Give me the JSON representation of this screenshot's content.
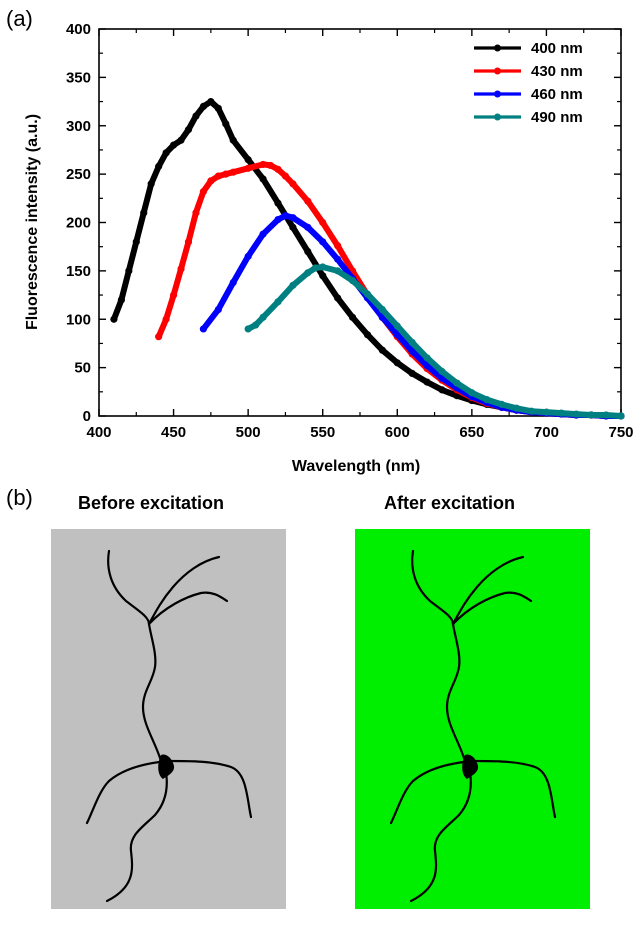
{
  "panel_a_label": "(a)",
  "panel_b_label": "(b)",
  "chart_data": {
    "type": "line",
    "xlabel": "Wavelength (nm)",
    "ylabel": "Fluorescence intensity (a.u.)",
    "xlim": [
      400,
      750
    ],
    "ylim": [
      0,
      400
    ],
    "xticks": [
      400,
      450,
      500,
      550,
      600,
      650,
      700,
      750
    ],
    "yticks": [
      0,
      50,
      100,
      150,
      200,
      250,
      300,
      350,
      400
    ],
    "grid": false,
    "legend_position": "top-right",
    "series": [
      {
        "name": "400 nm",
        "color": "#000000",
        "x": [
          410,
          415,
          420,
          425,
          430,
          435,
          440,
          445,
          450,
          455,
          460,
          465,
          470,
          475,
          480,
          485,
          490,
          500,
          510,
          520,
          530,
          540,
          550,
          560,
          570,
          580,
          590,
          600,
          610,
          620,
          630,
          640,
          650,
          660,
          670,
          680,
          690,
          700,
          710,
          720,
          730,
          740,
          750
        ],
        "y": [
          100,
          120,
          150,
          180,
          210,
          240,
          258,
          272,
          280,
          285,
          296,
          310,
          320,
          325,
          318,
          302,
          285,
          265,
          245,
          220,
          195,
          170,
          145,
          122,
          102,
          84,
          68,
          55,
          44,
          35,
          27,
          21,
          16,
          12,
          9,
          6,
          4,
          3,
          2,
          1,
          1,
          0,
          0
        ]
      },
      {
        "name": "430 nm",
        "color": "#ff0000",
        "x": [
          440,
          445,
          450,
          455,
          460,
          465,
          470,
          475,
          480,
          485,
          490,
          500,
          510,
          515,
          520,
          525,
          530,
          540,
          550,
          560,
          570,
          580,
          590,
          600,
          610,
          620,
          630,
          640,
          650,
          660,
          670,
          680,
          690,
          700,
          710,
          720,
          730,
          740,
          750
        ],
        "y": [
          82,
          100,
          125,
          152,
          180,
          210,
          232,
          243,
          248,
          250,
          252,
          256,
          260,
          259,
          255,
          248,
          240,
          222,
          200,
          176,
          150,
          125,
          102,
          82,
          64,
          49,
          37,
          27,
          19,
          13,
          9,
          6,
          4,
          3,
          2,
          1,
          1,
          0,
          0
        ]
      },
      {
        "name": "460 nm",
        "color": "#0000ff",
        "x": [
          470,
          480,
          490,
          500,
          510,
          520,
          525,
          530,
          540,
          550,
          560,
          570,
          580,
          590,
          600,
          610,
          620,
          630,
          640,
          650,
          660,
          670,
          680,
          690,
          700,
          710,
          720,
          730,
          740,
          750
        ],
        "y": [
          90,
          110,
          138,
          165,
          188,
          203,
          207,
          205,
          195,
          180,
          162,
          142,
          122,
          102,
          84,
          67,
          52,
          39,
          29,
          20,
          14,
          9,
          6,
          4,
          3,
          2,
          1,
          1,
          0,
          0
        ]
      },
      {
        "name": "490 nm",
        "color": "#008080",
        "x": [
          500,
          505,
          510,
          520,
          530,
          540,
          545,
          550,
          560,
          570,
          580,
          590,
          600,
          610,
          620,
          630,
          640,
          650,
          660,
          670,
          680,
          690,
          700,
          710,
          720,
          730,
          740,
          750
        ],
        "y": [
          90,
          94,
          102,
          118,
          135,
          148,
          153,
          154,
          150,
          140,
          126,
          110,
          93,
          76,
          60,
          46,
          34,
          24,
          17,
          12,
          8,
          5,
          4,
          3,
          2,
          1,
          1,
          0
        ]
      }
    ]
  },
  "panel_b": {
    "before_title": "Before excitation",
    "after_title": "After excitation",
    "before_color": "#c0c0c0",
    "after_color": "#00ee00",
    "icon": "neuron-icon"
  }
}
